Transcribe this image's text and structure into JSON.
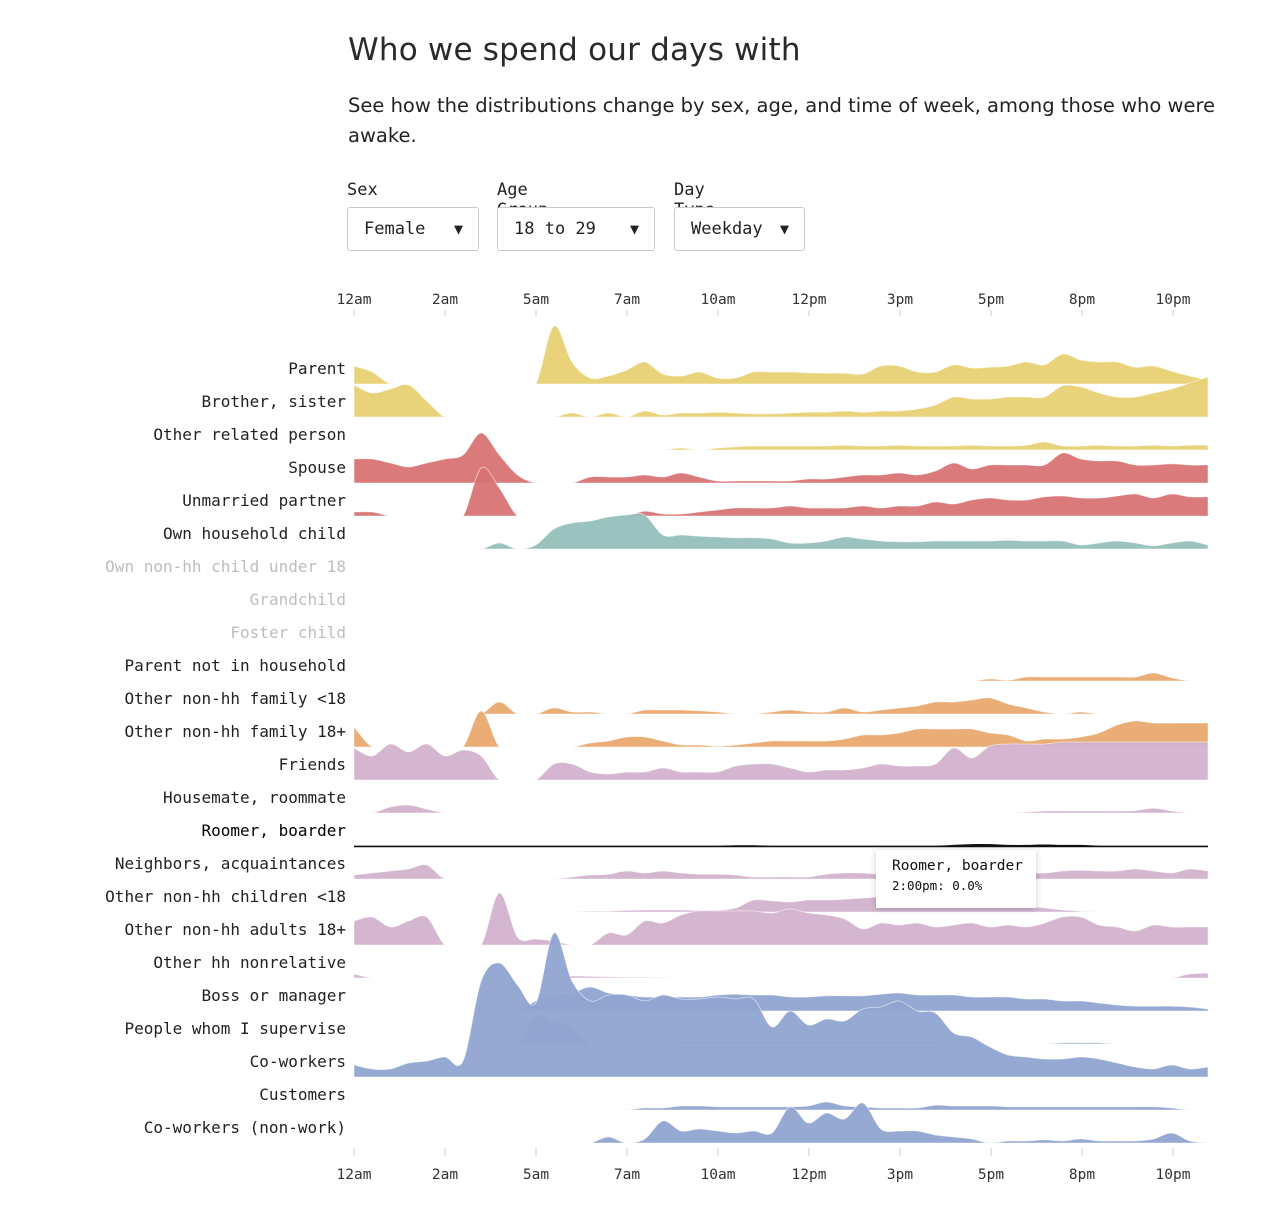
{
  "header": {
    "title": "Who we spend our days with",
    "subtitle": "See how the distributions change by sex, age, and time of week, among those who were awake."
  },
  "controls": [
    {
      "label": "Sex",
      "value": "Female",
      "caret": "▼"
    },
    {
      "label": "Age Group",
      "value": "18 to 29",
      "caret": "▼"
    },
    {
      "label": "Day Type",
      "value": "Weekday",
      "caret": "▼"
    }
  ],
  "tooltip": {
    "title": "Roomer, boarder",
    "value": "2:00pm: 0.0%"
  },
  "colors": {
    "yellow": "#e8d173",
    "red": "#d97373",
    "teal": "#95bfbb",
    "orange": "#e9a96f",
    "purple": "#d3b2cf",
    "blue": "#8fa4d0",
    "black": "#111111",
    "label": "#222222",
    "label_muted": "#bdbdbd"
  },
  "chart_data": {
    "type": "area",
    "subtype": "ridgeline",
    "title": "Who we spend our days with",
    "x_tick_labels": [
      "12am",
      "2am",
      "5am",
      "7am",
      "10am",
      "12pm",
      "3pm",
      "5pm",
      "8pm",
      "10pm"
    ],
    "x_note": "values sampled at 48 evenly spaced points across the day (x index 0..47); y is relative density (0–1 of max ridge height)",
    "series": [
      {
        "name": "Parent",
        "color": "yellow",
        "muted": false,
        "values": [
          0.45,
          0.3,
          0,
          0,
          0,
          0,
          0,
          0,
          0,
          0,
          0,
          1.45,
          0.55,
          0.15,
          0.2,
          0.35,
          0.55,
          0.25,
          0.2,
          0.3,
          0.15,
          0.15,
          0.3,
          0.3,
          0.3,
          0.28,
          0.27,
          0.27,
          0.25,
          0.45,
          0.45,
          0.3,
          0.3,
          0.48,
          0.4,
          0.42,
          0.45,
          0.55,
          0.48,
          0.75,
          0.6,
          0.55,
          0.55,
          0.42,
          0.45,
          0.32,
          0.2,
          0.1
        ]
      },
      {
        "name": "Brother, sister",
        "color": "yellow",
        "muted": false,
        "values": [
          0.8,
          0.6,
          0.7,
          0.8,
          0.4,
          0,
          0,
          0,
          0,
          0,
          0,
          0,
          0.1,
          0,
          0.1,
          0,
          0.15,
          0.05,
          0.1,
          0.1,
          0.12,
          0.1,
          0.08,
          0.08,
          0.1,
          0.12,
          0.12,
          0.15,
          0.12,
          0.15,
          0.15,
          0.2,
          0.3,
          0.5,
          0.45,
          0.45,
          0.5,
          0.5,
          0.5,
          0.78,
          0.75,
          0.6,
          0.5,
          0.5,
          0.6,
          0.7,
          0.85,
          1.0
        ]
      },
      {
        "name": "Other related person",
        "color": "yellow",
        "muted": false,
        "values": [
          0,
          0,
          0,
          0,
          0,
          0,
          0,
          0,
          0,
          0,
          0,
          0,
          0,
          0,
          0,
          0,
          0,
          0,
          0.05,
          0,
          0.05,
          0.08,
          0.1,
          0.1,
          0.1,
          0.1,
          0.1,
          0.12,
          0.1,
          0.1,
          0.12,
          0.1,
          0.1,
          0.1,
          0.12,
          0.1,
          0.1,
          0.12,
          0.2,
          0.1,
          0.1,
          0.12,
          0.1,
          0.1,
          0.12,
          0.1,
          0.12,
          0.12
        ]
      },
      {
        "name": "Spouse",
        "color": "red",
        "muted": false,
        "values": [
          0.6,
          0.6,
          0.5,
          0.4,
          0.5,
          0.6,
          0.7,
          1.25,
          0.7,
          0.2,
          0,
          0,
          0,
          0.15,
          0.15,
          0.15,
          0.2,
          0.15,
          0.25,
          0.15,
          0.05,
          0.05,
          0.05,
          0.05,
          0.05,
          0.1,
          0.1,
          0.15,
          0.2,
          0.2,
          0.25,
          0.2,
          0.3,
          0.5,
          0.35,
          0.45,
          0.45,
          0.45,
          0.45,
          0.75,
          0.6,
          0.55,
          0.55,
          0.45,
          0.45,
          0.48,
          0.45,
          0.45
        ]
      },
      {
        "name": "Unmarried partner",
        "color": "red",
        "muted": false,
        "values": [
          0.1,
          0.1,
          0,
          0,
          0,
          0,
          0,
          1.2,
          0.7,
          0,
          0,
          0,
          0,
          0,
          0,
          0,
          0.12,
          0.05,
          0.05,
          0.1,
          0.15,
          0.2,
          0.2,
          0.2,
          0.25,
          0.2,
          0.2,
          0.2,
          0.25,
          0.2,
          0.25,
          0.25,
          0.35,
          0.3,
          0.4,
          0.45,
          0.4,
          0.4,
          0.48,
          0.5,
          0.45,
          0.45,
          0.5,
          0.55,
          0.45,
          0.55,
          0.48,
          0.48
        ]
      },
      {
        "name": "Own household child",
        "color": "teal",
        "muted": false,
        "values": [
          0,
          0,
          0,
          0,
          0,
          0,
          0,
          0,
          0.15,
          0,
          0.1,
          0.5,
          0.65,
          0.7,
          0.8,
          0.85,
          0.85,
          0.35,
          0.35,
          0.32,
          0.3,
          0.28,
          0.28,
          0.25,
          0.15,
          0.15,
          0.2,
          0.3,
          0.25,
          0.2,
          0.18,
          0.18,
          0.2,
          0.2,
          0.2,
          0.2,
          0.22,
          0.2,
          0.2,
          0.2,
          0.1,
          0.15,
          0.2,
          0.15,
          0.08,
          0.15,
          0.2,
          0.1
        ]
      },
      {
        "name": "Own non-hh child under 18",
        "color": "teal",
        "muted": true,
        "values": []
      },
      {
        "name": "Grandchild",
        "color": "teal",
        "muted": true,
        "values": []
      },
      {
        "name": "Foster child",
        "color": "teal",
        "muted": true,
        "values": []
      },
      {
        "name": "Parent not in household",
        "color": "orange",
        "muted": false,
        "values": [
          0,
          0,
          0,
          0,
          0,
          0,
          0,
          0,
          0,
          0,
          0,
          0,
          0,
          0,
          0,
          0,
          0,
          0,
          0,
          0,
          0,
          0,
          0,
          0,
          0,
          0,
          0,
          0,
          0,
          0,
          0,
          0,
          0,
          0,
          0,
          0.05,
          0.02,
          0.1,
          0.1,
          0.1,
          0.1,
          0.1,
          0.1,
          0.1,
          0.2,
          0.08,
          0,
          0
        ]
      },
      {
        "name": "Other non-hh family <18",
        "color": "orange",
        "muted": false,
        "values": [
          0,
          0,
          0,
          0,
          0,
          0,
          0,
          0,
          0.3,
          0,
          0,
          0.15,
          0.05,
          0.05,
          0,
          0,
          0.1,
          0.1,
          0.1,
          0.08,
          0.05,
          0,
          0,
          0.05,
          0.1,
          0.05,
          0.05,
          0.15,
          0.05,
          0.1,
          0.15,
          0.2,
          0.3,
          0.3,
          0.35,
          0.4,
          0.25,
          0.15,
          0.05,
          0,
          0.05,
          0,
          0,
          0,
          0,
          0,
          0,
          0
        ]
      },
      {
        "name": "Other non-hh family 18+",
        "color": "orange",
        "muted": false,
        "values": [
          0.5,
          0,
          0,
          0,
          0,
          0,
          0,
          0.9,
          0,
          0,
          0,
          0,
          0,
          0.1,
          0.15,
          0.25,
          0.25,
          0.15,
          0.05,
          0.05,
          0.02,
          0.05,
          0.1,
          0.15,
          0.15,
          0.15,
          0.15,
          0.2,
          0.3,
          0.3,
          0.35,
          0.45,
          0.45,
          0.45,
          0.45,
          0.35,
          0.3,
          0.15,
          0.2,
          0.2,
          0.25,
          0.35,
          0.55,
          0.65,
          0.6,
          0.6,
          0.6,
          0.6
        ]
      },
      {
        "name": "Friends",
        "color": "purple",
        "muted": false,
        "values": [
          0.8,
          0.6,
          0.9,
          0.7,
          0.9,
          0.6,
          0.75,
          0.6,
          0,
          0,
          0,
          0.4,
          0.4,
          0.2,
          0.15,
          0.2,
          0.2,
          0.3,
          0.2,
          0.2,
          0.2,
          0.35,
          0.4,
          0.4,
          0.3,
          0.2,
          0.25,
          0.25,
          0.3,
          0.4,
          0.35,
          0.35,
          0.4,
          0.8,
          0.55,
          0.85,
          0.9,
          0.9,
          0.9,
          0.95,
          0.95,
          0.95,
          0.95,
          0.95,
          0.95,
          0.95,
          0.95,
          0.95
        ]
      },
      {
        "name": "Housemate, roommate",
        "color": "purple",
        "muted": false,
        "values": [
          0,
          0,
          0.15,
          0.2,
          0.1,
          0,
          0,
          0,
          0,
          0,
          0,
          0,
          0,
          0,
          0,
          0,
          0,
          0,
          0,
          0,
          0,
          0,
          0,
          0,
          0,
          0,
          0,
          0,
          0,
          0,
          0,
          0,
          0,
          0,
          0,
          0,
          0,
          0.02,
          0.05,
          0.05,
          0.05,
          0.05,
          0.05,
          0.06,
          0.12,
          0.05,
          0,
          0
        ]
      },
      {
        "name": "Roomer, boarder",
        "color": "black",
        "muted": false,
        "highlighted": true,
        "values": [
          0,
          0,
          0,
          0,
          0,
          0,
          0,
          0,
          0,
          0,
          0,
          0,
          0,
          0,
          0,
          0,
          0,
          0,
          0,
          0,
          0,
          0.01,
          0.01,
          0,
          0,
          0,
          0,
          0,
          0,
          0,
          0,
          0,
          0,
          0.02,
          0.04,
          0.04,
          0.02,
          0.02,
          0.03,
          0.02,
          0.02,
          0,
          0,
          0,
          0,
          0,
          0,
          0
        ]
      },
      {
        "name": "Neighbors, acquaintances",
        "color": "purple",
        "muted": false,
        "values": [
          0.1,
          0.15,
          0.2,
          0.25,
          0.35,
          0,
          0,
          0,
          0,
          0,
          0,
          0,
          0.05,
          0.1,
          0.12,
          0.2,
          0.15,
          0.2,
          0.15,
          0.12,
          0.12,
          0.1,
          0.05,
          0.05,
          0.05,
          0.05,
          0.12,
          0.15,
          0.15,
          0.12,
          0.15,
          0.25,
          0.2,
          0.2,
          0.2,
          0.2,
          0.18,
          0.15,
          0.15,
          0.2,
          0.22,
          0.2,
          0.2,
          0.25,
          0.2,
          0.15,
          0.25,
          0.2
        ]
      },
      {
        "name": "Other non-hh children <18",
        "color": "purple",
        "muted": false,
        "values": [
          0,
          0,
          0,
          0,
          0,
          0,
          0,
          0,
          0,
          0,
          0,
          0,
          0,
          0.02,
          0.02,
          0.04,
          0.05,
          0.05,
          0.05,
          0.04,
          0.04,
          0.1,
          0.3,
          0.28,
          0.25,
          0.3,
          0.3,
          0.32,
          0.35,
          0.38,
          0.4,
          0.4,
          0.42,
          0.35,
          0.3,
          0.25,
          0.2,
          0.15,
          0.1,
          0.05,
          0.02,
          0,
          0,
          0,
          0,
          0,
          0,
          0
        ]
      },
      {
        "name": "Other non-hh adults 18+",
        "color": "purple",
        "muted": false,
        "values": [
          0.6,
          0.7,
          0.45,
          0.6,
          0.7,
          0,
          0,
          0,
          1.3,
          0.2,
          0.15,
          0.1,
          0,
          0,
          0.3,
          0.25,
          0.6,
          0.55,
          0.75,
          0.85,
          0.85,
          0.85,
          0.85,
          0.8,
          0.9,
          0.8,
          0.75,
          0.65,
          0.4,
          0.55,
          0.5,
          0.55,
          0.45,
          0.5,
          0.55,
          0.45,
          0.5,
          0.45,
          0.55,
          0.7,
          0.7,
          0.5,
          0.45,
          0.35,
          0.5,
          0.45,
          0.45,
          0.45
        ]
      },
      {
        "name": "Other hh nonrelative",
        "color": "purple",
        "muted": false,
        "values": [
          0.1,
          0,
          0,
          0,
          0,
          0,
          0,
          0,
          0,
          0,
          0,
          0,
          0.05,
          0.04,
          0.03,
          0.02,
          0.02,
          0.01,
          0,
          0,
          0,
          0,
          0,
          0,
          0,
          0,
          0,
          0,
          0,
          0,
          0,
          0,
          0,
          0,
          0,
          0,
          0,
          0,
          0,
          0,
          0,
          0,
          0,
          0,
          0,
          0,
          0.1,
          0.12
        ]
      },
      {
        "name": "Boss or manager",
        "color": "blue",
        "muted": false,
        "values": [
          0,
          0,
          0,
          0,
          0,
          0,
          0,
          0,
          0,
          0,
          0.25,
          0.4,
          0.45,
          0.6,
          0.45,
          0.4,
          0.35,
          0.35,
          0.35,
          0.35,
          0.4,
          0.42,
          0.4,
          0.4,
          0.35,
          0.35,
          0.38,
          0.38,
          0.38,
          0.42,
          0.45,
          0.4,
          0.4,
          0.4,
          0.35,
          0.35,
          0.35,
          0.3,
          0.3,
          0.25,
          0.25,
          0.2,
          0.15,
          0.12,
          0.12,
          0.12,
          0.1,
          0.05
        ]
      },
      {
        "name": "People whom I supervise",
        "color": "blue",
        "muted": false,
        "values": [
          0,
          0,
          0,
          0,
          0,
          0,
          0,
          0,
          0,
          0,
          0.7,
          0.55,
          0.45,
          0,
          0,
          0,
          0,
          0,
          0.05,
          0.05,
          0.05,
          0.05,
          0.05,
          0.05,
          0.05,
          0.05,
          0.05,
          0.05,
          0.05,
          0.05,
          0.05,
          0.05,
          0.05,
          0,
          0,
          0,
          0,
          0,
          0,
          0.03,
          0.03,
          0.03,
          0,
          0,
          0,
          0,
          0,
          0
        ]
      },
      {
        "name": "Co-workers",
        "color": "blue",
        "muted": false,
        "values": [
          0.3,
          0.2,
          0.2,
          0.35,
          0.4,
          0.5,
          0.4,
          2.4,
          2.85,
          2.3,
          1.85,
          3.6,
          2.4,
          1.9,
          2.05,
          2.05,
          1.9,
          2.05,
          1.95,
          1.95,
          2.0,
          1.95,
          1.95,
          1.25,
          1.65,
          1.3,
          1.45,
          1.4,
          1.7,
          1.75,
          1.9,
          1.65,
          1.6,
          1.1,
          1.0,
          0.75,
          0.55,
          0.5,
          0.45,
          0.45,
          0.5,
          0.45,
          0.35,
          0.25,
          0.2,
          0.3,
          0.2,
          0.25
        ]
      },
      {
        "name": "Customers",
        "color": "blue",
        "muted": false,
        "values": [
          0,
          0,
          0,
          0,
          0,
          0,
          0,
          0,
          0,
          0,
          0,
          0,
          0,
          0,
          0,
          0,
          0.05,
          0.05,
          0.1,
          0.1,
          0.08,
          0.08,
          0.08,
          0.08,
          0.08,
          0.1,
          0.2,
          0.1,
          0.08,
          0.05,
          0.05,
          0.05,
          0.12,
          0.1,
          0.1,
          0.1,
          0.08,
          0.08,
          0.08,
          0.08,
          0.08,
          0.08,
          0.08,
          0.08,
          0.08,
          0.05,
          0,
          0
        ]
      },
      {
        "name": "Co-workers (non-work)",
        "color": "blue",
        "muted": false,
        "values": [
          0,
          0,
          0,
          0,
          0,
          0,
          0,
          0,
          0,
          0,
          0,
          0,
          0,
          0,
          0.15,
          0,
          0.1,
          0.55,
          0.3,
          0.35,
          0.3,
          0.25,
          0.3,
          0.25,
          0.9,
          0.5,
          0.75,
          0.6,
          1.0,
          0.35,
          0.3,
          0.3,
          0.2,
          0.15,
          0.1,
          0,
          0.05,
          0.05,
          0.08,
          0.05,
          0.1,
          0.05,
          0.05,
          0.05,
          0.1,
          0.25,
          0.05,
          0
        ]
      }
    ]
  }
}
